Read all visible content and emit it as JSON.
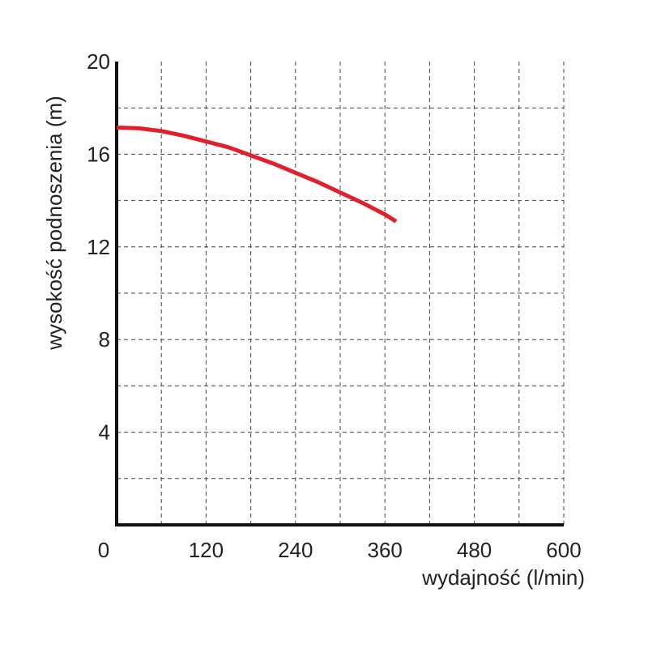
{
  "chart_data": {
    "type": "line",
    "title": "",
    "xlabel": "wydajność (l/min)",
    "ylabel": "wysokość podnoszenia (m)",
    "xlim": [
      0,
      600
    ],
    "ylim": [
      0,
      20
    ],
    "x_ticks": [
      0,
      120,
      240,
      360,
      480,
      600
    ],
    "x_tick_labels": [
      "0",
      "120",
      "240",
      "360",
      "480",
      "600"
    ],
    "y_ticks": [
      4,
      8,
      12,
      16,
      20
    ],
    "y_tick_labels": [
      "4",
      "8",
      "12",
      "16",
      "20"
    ],
    "grid": true,
    "x_grid_step": 60,
    "y_grid_step": 2,
    "series": [
      {
        "color": "#e0202a",
        "x": [
          0,
          30,
          60,
          90,
          120,
          150,
          180,
          210,
          240,
          270,
          300,
          330,
          360,
          375
        ],
        "y": [
          17.15,
          17.12,
          17.0,
          16.8,
          16.55,
          16.3,
          15.95,
          15.6,
          15.2,
          14.8,
          14.35,
          13.9,
          13.4,
          13.1
        ]
      }
    ]
  }
}
